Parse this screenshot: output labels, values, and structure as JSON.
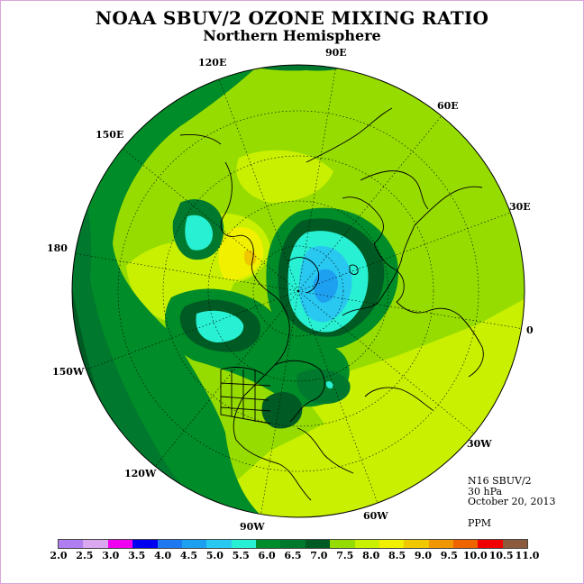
{
  "title": "NOAA SBUV/2 OZONE MIXING RATIO",
  "subtitle": "Northern Hemisphere",
  "longitude_labels": [
    "90E",
    "60E",
    "30E",
    "0",
    "30W",
    "60W",
    "90W",
    "120W",
    "150W",
    "180",
    "150E",
    "120E"
  ],
  "info": {
    "instrument": "N16 SBUV/2",
    "level": "30 hPa",
    "date": "October 20, 2013",
    "units": "PPM"
  },
  "colorbar": {
    "colors": [
      "#b07ef0",
      "#d9a8f0",
      "#f000f0",
      "#0000f0",
      "#1e78f0",
      "#1ea0f0",
      "#28c8f0",
      "#28f0d2",
      "#008c28",
      "#00782d",
      "#005a23",
      "#96dc00",
      "#c8f000",
      "#f0f000",
      "#f0c800",
      "#f09600",
      "#f06400",
      "#f00000",
      "#8c5a3c"
    ],
    "labels": [
      "2.0",
      "2.5",
      "3.0",
      "3.5",
      "4.0",
      "4.5",
      "5.0",
      "5.5",
      "6.0",
      "6.5",
      "7.0",
      "7.5",
      "8.0",
      "8.5",
      "9.0",
      "9.5",
      "10.0",
      "10.5",
      "11.0"
    ]
  },
  "map_colors": {
    "c6_0": "#008c28",
    "c6_5": "#00782d",
    "c7_0": "#005a23",
    "c7_5": "#96dc00",
    "c8_0": "#c8f000",
    "c8_5": "#f0f000",
    "c9_0": "#f0c800",
    "c5_0": "#28c8f0",
    "c5_5": "#28f0d2",
    "c4_5": "#1ea0f0"
  }
}
